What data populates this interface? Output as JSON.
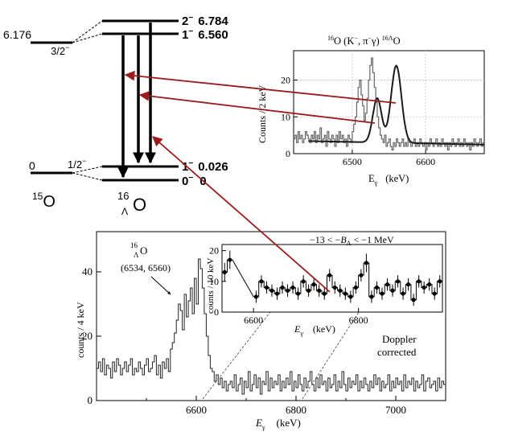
{
  "level_scheme": {
    "o15": {
      "label": "15O",
      "mass_number": "15",
      "symbol": "O",
      "levels": [
        {
          "energy": "6.176",
          "spin": "3/2",
          "parity": "−"
        },
        {
          "energy": "0",
          "spin": "1/2",
          "parity": "−"
        }
      ]
    },
    "hypernucleus": {
      "label": "16ΛO",
      "mass_number": "16",
      "lambda": "Λ",
      "symbol": "O",
      "levels": [
        {
          "spin": "2",
          "parity": "−",
          "energy": "6.784"
        },
        {
          "spin": "1",
          "parity": "−",
          "energy": "6.560"
        },
        {
          "spin": "1",
          "parity": "−",
          "energy": "0.026"
        },
        {
          "spin": "0",
          "parity": "−",
          "energy": "0"
        }
      ]
    }
  },
  "colors": {
    "arrow": "#9b1c1c",
    "levels": "#000000",
    "grid": "#bfbfbf",
    "fit": "#1a1a1a"
  },
  "chart_data": [
    {
      "id": "top-right-spectrum",
      "type": "line",
      "title": "16O (K−, π−γ) 16ΛO",
      "title_parts": {
        "a": "16",
        "b": "O (K",
        "c": "−",
        "d": ", π",
        "e": "−",
        "f": "γ) ",
        "g": "16",
        "h": "Λ",
        "i": "O"
      },
      "xlabel": "Eγ   (keV)",
      "xlabel_main": "E",
      "xlabel_sub": "γ",
      "xlabel_unit": "(keV)",
      "ylabel": "Counts / 2 keV",
      "xlim": [
        6420,
        6680
      ],
      "ylim": [
        0,
        28
      ],
      "x_ticks": [
        6500,
        6600
      ],
      "y_ticks": [
        0,
        10,
        20
      ],
      "grid": true,
      "histogram": {
        "x_start": 6420,
        "bin_width": 2,
        "values": [
          4,
          5,
          3,
          6,
          4,
          5,
          3,
          4,
          6,
          5,
          4,
          3,
          5,
          4,
          6,
          3,
          5,
          4,
          7,
          3,
          4,
          5,
          2,
          6,
          4,
          3,
          5,
          4,
          2,
          5,
          3,
          6,
          4,
          5,
          3,
          4,
          2,
          5,
          4,
          3,
          6,
          8,
          10,
          14,
          18,
          20,
          16,
          13,
          9,
          11,
          15,
          20,
          24,
          26,
          22,
          18,
          14,
          10,
          7,
          5,
          4,
          3,
          5,
          2,
          3,
          4,
          2,
          1,
          3,
          2,
          4,
          3,
          2,
          3,
          4,
          2,
          3,
          2,
          4,
          3,
          2,
          3,
          4,
          2,
          3,
          2,
          4,
          3,
          2,
          3,
          1,
          3,
          2,
          4,
          3,
          2,
          3,
          4,
          2,
          3,
          2,
          4,
          3,
          2,
          3,
          1,
          3,
          2,
          4,
          3,
          2,
          3,
          4,
          2,
          3,
          2,
          4,
          3,
          2,
          3,
          1,
          3,
          2,
          4,
          3,
          2,
          3,
          4,
          2,
          3
        ]
      },
      "fit": {
        "background_level": 3.5,
        "background_slope": -0.004,
        "peaks": [
          {
            "center": 6534,
            "sigma": 6,
            "amplitude": 12
          },
          {
            "center": 6560,
            "sigma": 7,
            "amplitude": 21
          }
        ]
      }
    },
    {
      "id": "bottom-spectrum",
      "type": "line",
      "ylabel": "counts / 4 keV",
      "xlabel": "Eγ   (keV)",
      "xlabel_main": "E",
      "xlabel_sub": "γ",
      "xlabel_unit": "(keV)",
      "xlim": [
        6400,
        7100
      ],
      "ylim": [
        0,
        50
      ],
      "x_ticks": [
        6600,
        6800,
        7000
      ],
      "y_ticks": [
        0,
        20,
        40
      ],
      "histogram": {
        "x_start": 6400,
        "bin_width": 4,
        "values": [
          10,
          12,
          9,
          13,
          8,
          11,
          10,
          7,
          12,
          9,
          13,
          11,
          8,
          10,
          12,
          9,
          11,
          13,
          8,
          10,
          9,
          12,
          10,
          8,
          11,
          13,
          9,
          10,
          12,
          14,
          8,
          11,
          7,
          12,
          10,
          13,
          9,
          16,
          18,
          21,
          25,
          30,
          28,
          22,
          33,
          26,
          31,
          35,
          27,
          38,
          30,
          44,
          41,
          35,
          27,
          20,
          14,
          10,
          9,
          6,
          8,
          5,
          7,
          4,
          6,
          3,
          5,
          6,
          4,
          8,
          3,
          5,
          7,
          2,
          6,
          4,
          9,
          3,
          5,
          8,
          4,
          7,
          2,
          6,
          5,
          9,
          3,
          7,
          4,
          6,
          5,
          8,
          3,
          6,
          4,
          7,
          5,
          9,
          3,
          6,
          4,
          8,
          5,
          3,
          7,
          4,
          6,
          9,
          5,
          3,
          7,
          4,
          8,
          5,
          6,
          3,
          7,
          4,
          5,
          8,
          3,
          6,
          4,
          9,
          5,
          3,
          7,
          4,
          6,
          5,
          8,
          3,
          6,
          4,
          7,
          5,
          3,
          6,
          4,
          8,
          5,
          7,
          3,
          6,
          4,
          5,
          8,
          3,
          6,
          4,
          7,
          5,
          6,
          3,
          8,
          4,
          6,
          5,
          7,
          3,
          6,
          4,
          5,
          8,
          3,
          6,
          7,
          4,
          5,
          6,
          3,
          7,
          4,
          6,
          5,
          8,
          3
        ]
      },
      "peak_label": {
        "nucleus_a": "16",
        "nucleus_b": "Λ",
        "nucleus_c": "O",
        "energies": "(6534, 6560)"
      },
      "doppler_line1": "Doppler",
      "doppler_line2": "corrected"
    },
    {
      "id": "inset-spectrum",
      "type": "scatter",
      "ylabel": "counts / 10 keV",
      "xlabel": "Eγ   (keV)",
      "xlabel_main": "E",
      "xlabel_sub": "γ",
      "xlabel_unit": "(keV)",
      "title": "−13 < −BΛ < −1 MeV",
      "title_parts": {
        "a": "−13 < −",
        "b": "B",
        "c": "Λ",
        "d": " < −1 MeV"
      },
      "xlim": [
        6540,
        6960
      ],
      "ylim": [
        0,
        22
      ],
      "x_ticks": [
        6600,
        6800
      ],
      "y_ticks": [
        0,
        10,
        20
      ],
      "points": {
        "x": [
          6545,
          6555,
          6605,
          6615,
          6625,
          6635,
          6645,
          6655,
          6665,
          6675,
          6685,
          6695,
          6705,
          6715,
          6725,
          6735,
          6745,
          6755,
          6765,
          6775,
          6785,
          6795,
          6805,
          6815,
          6825,
          6835,
          6845,
          6855,
          6865,
          6875,
          6885,
          6895,
          6905,
          6915,
          6925,
          6935,
          6945,
          6955
        ],
        "y": [
          13,
          17,
          5,
          10,
          8,
          7,
          6,
          8,
          7,
          8,
          6,
          10,
          7,
          9,
          7,
          6,
          12,
          8,
          7,
          6,
          5,
          8,
          12,
          16,
          5,
          8,
          6,
          9,
          7,
          10,
          6,
          9,
          4,
          10,
          8,
          9,
          6,
          10
        ],
        "err": [
          3,
          3,
          2,
          2,
          2,
          2,
          2,
          2,
          2,
          2,
          2,
          2,
          2,
          2,
          2,
          2,
          2,
          2,
          2,
          2,
          2,
          2,
          2,
          3,
          2,
          2,
          2,
          2,
          2,
          2,
          2,
          2,
          2,
          2,
          2,
          2,
          2,
          2
        ]
      }
    }
  ]
}
